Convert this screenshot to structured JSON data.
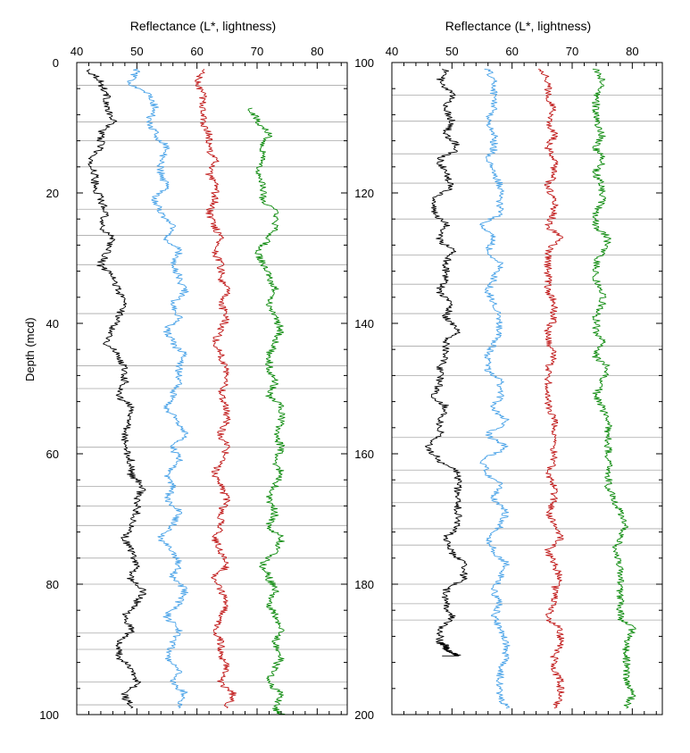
{
  "chart_data": [
    {
      "type": "line",
      "title": "Reflectance  (L*, lightness)",
      "ylabel": "Depth  (mcd)",
      "xlim": [
        40,
        85
      ],
      "ylim": [
        0,
        100
      ],
      "y_inverted": true,
      "x_ticks": [
        40,
        50,
        60,
        70,
        80
      ],
      "y_ticks": [
        0,
        20,
        40,
        60,
        80,
        100
      ],
      "colors": [
        "#000000",
        "#4aa3e8",
        "#c01818",
        "#0c8a0c"
      ],
      "boundaries": [
        3.5,
        9.1,
        12,
        16,
        22.5,
        26.5,
        31,
        38.5,
        46.5,
        50,
        59,
        65,
        68,
        71,
        76,
        80,
        87.5,
        90,
        95,
        98.5
      ],
      "series": [
        {
          "color": "#000000",
          "x": [
            42,
            44,
            45,
            45,
            46,
            44,
            44,
            42,
            43,
            43,
            44,
            45,
            44,
            46,
            45,
            44,
            46,
            47,
            48,
            47,
            46,
            45,
            47,
            48,
            48,
            47,
            49,
            49,
            48,
            48,
            49,
            49,
            51,
            50,
            50,
            49,
            48,
            49,
            50,
            49,
            51,
            50,
            48,
            49,
            47,
            47,
            49,
            50,
            48,
            49
          ],
          "y": [
            1,
            3,
            5,
            7,
            9,
            11,
            13,
            15,
            17,
            19,
            21,
            23,
            25,
            27,
            29,
            31,
            33,
            35,
            37,
            39,
            41,
            43,
            45,
            47,
            49,
            51,
            53,
            55,
            57,
            59,
            61,
            63,
            65,
            67,
            69,
            71,
            73,
            75,
            77,
            79,
            81,
            83,
            85,
            87,
            89,
            91,
            93,
            95,
            97,
            99
          ]
        },
        {
          "color": "#4aa3e8",
          "x": [
            50,
            49,
            52,
            53,
            52,
            53,
            55,
            54,
            54,
            55,
            53,
            54,
            56,
            55,
            57,
            56,
            57,
            58,
            56,
            57,
            55,
            56,
            58,
            57,
            57,
            56,
            55,
            57,
            58,
            56,
            57,
            55,
            56,
            55,
            57,
            56,
            54,
            56,
            57,
            56,
            58,
            57,
            55,
            57,
            56,
            55,
            57,
            56,
            58,
            57
          ],
          "y": [
            1,
            3,
            5,
            7,
            9,
            11,
            13,
            15,
            17,
            19,
            21,
            23,
            25,
            27,
            29,
            31,
            33,
            35,
            37,
            39,
            41,
            43,
            45,
            47,
            49,
            51,
            53,
            55,
            57,
            59,
            61,
            63,
            65,
            67,
            69,
            71,
            73,
            75,
            77,
            79,
            81,
            83,
            85,
            87,
            89,
            91,
            93,
            95,
            97,
            99
          ]
        },
        {
          "color": "#c01818",
          "x": [
            61,
            60,
            61,
            61,
            61,
            62,
            62,
            63,
            62,
            63,
            63,
            62,
            63,
            64,
            63,
            64,
            64,
            65,
            64,
            65,
            64,
            63,
            64,
            65,
            65,
            64,
            65,
            65,
            64,
            65,
            64,
            63,
            64,
            65,
            64,
            64,
            63,
            64,
            65,
            63,
            64,
            65,
            64,
            63,
            64,
            64,
            65,
            64,
            66,
            65
          ],
          "y": [
            1,
            3,
            5,
            7,
            9,
            11,
            13,
            15,
            17,
            19,
            21,
            23,
            25,
            27,
            29,
            31,
            33,
            35,
            37,
            39,
            41,
            43,
            45,
            47,
            49,
            51,
            53,
            55,
            57,
            59,
            61,
            63,
            65,
            67,
            69,
            71,
            73,
            75,
            77,
            79,
            81,
            83,
            85,
            87,
            89,
            91,
            93,
            95,
            97,
            99
          ]
        },
        {
          "color": "#0c8a0c",
          "x": [
            69,
            70,
            72,
            71,
            71,
            70,
            71,
            71,
            73,
            73,
            72,
            70,
            71,
            72,
            73,
            72,
            73,
            74,
            73,
            72,
            72,
            73,
            72,
            74,
            74,
            73,
            74,
            73,
            74,
            73,
            72,
            73,
            72,
            74,
            73,
            71,
            72,
            73,
            72,
            73,
            74,
            73,
            74,
            73,
            72,
            74,
            73,
            74,
            73,
            74
          ],
          "y": [
            7,
            9,
            11,
            13,
            15,
            17,
            19,
            21,
            23,
            25,
            27,
            29,
            31,
            33,
            35,
            37,
            39,
            41,
            43,
            45,
            47,
            49,
            51,
            53,
            55,
            57,
            59,
            61,
            63,
            65,
            67,
            69,
            71,
            73,
            75,
            77,
            79,
            81,
            83,
            85,
            87,
            89,
            91,
            93,
            95,
            97,
            99,
            100,
            100,
            100
          ]
        }
      ]
    },
    {
      "type": "line",
      "title": "Reflectance  (L*, lightness)",
      "xlim": [
        40,
        85
      ],
      "ylim": [
        100,
        200
      ],
      "y_inverted": true,
      "x_ticks": [
        40,
        50,
        60,
        70,
        80
      ],
      "y_ticks": [
        100,
        120,
        140,
        160,
        180,
        200
      ],
      "colors": [
        "#000000",
        "#4aa3e8",
        "#c01818",
        "#0c8a0c"
      ],
      "boundaries": [
        105,
        109,
        114,
        118.5,
        124,
        129.5,
        134,
        138.5,
        143.5,
        148,
        157.5,
        162.5,
        164.5,
        167.5,
        171.5,
        174,
        180,
        183,
        185.5
      ],
      "series": [
        {
          "color": "#000000",
          "x": [
            49,
            48,
            50,
            49,
            50,
            49,
            51,
            48,
            49,
            50,
            47,
            47,
            49,
            48,
            50,
            49,
            49,
            48,
            50,
            49,
            51,
            49,
            49,
            48,
            48,
            47,
            49,
            48,
            48,
            46,
            48,
            51,
            51,
            51,
            51,
            51,
            49,
            50,
            52,
            52,
            49,
            49,
            50,
            48,
            48,
            49,
            49,
            50,
            51,
            49
          ],
          "y": [
            101,
            103,
            105,
            107,
            109,
            111,
            113,
            115,
            117,
            119,
            121,
            123,
            125,
            127,
            129,
            131,
            133,
            135,
            137,
            139,
            141,
            143,
            145,
            147,
            149,
            151,
            153,
            155,
            157,
            159,
            161,
            163,
            165,
            167,
            169,
            171,
            173,
            175,
            177,
            179,
            181,
            183,
            185,
            187,
            189,
            189.5,
            190,
            190.5,
            191,
            191
          ]
        },
        {
          "color": "#4aa3e8",
          "x": [
            56,
            57,
            57,
            57,
            56,
            57,
            57,
            56,
            57,
            58,
            58,
            58,
            55,
            57,
            56,
            58,
            57,
            56,
            57,
            58,
            58,
            57,
            56,
            56,
            58,
            58,
            57,
            59,
            56,
            59,
            55,
            56,
            58,
            57,
            59,
            58,
            56,
            57,
            59,
            58,
            57,
            58,
            57,
            58,
            59,
            59,
            58,
            58,
            58,
            59
          ],
          "y": [
            101,
            103,
            105,
            107,
            109,
            111,
            113,
            115,
            117,
            119,
            121,
            123,
            125,
            127,
            129,
            131,
            133,
            135,
            137,
            139,
            141,
            143,
            145,
            147,
            149,
            151,
            153,
            155,
            157,
            159,
            161,
            163,
            165,
            167,
            169,
            171,
            173,
            175,
            177,
            179,
            181,
            183,
            185,
            187,
            189,
            191,
            193,
            195,
            197,
            199
          ]
        },
        {
          "color": "#c01818",
          "x": [
            65,
            66,
            66,
            67,
            66,
            67,
            66,
            67,
            67,
            66,
            67,
            67,
            66,
            68,
            66,
            66,
            66,
            66,
            67,
            67,
            66,
            66,
            67,
            66,
            66,
            66,
            66,
            67,
            67,
            67,
            67,
            66,
            67,
            67,
            66,
            67,
            68,
            66,
            67,
            68,
            67,
            67,
            66,
            68,
            68,
            67,
            67,
            68,
            68,
            67
          ],
          "y": [
            101,
            103,
            105,
            107,
            109,
            111,
            113,
            115,
            117,
            119,
            121,
            123,
            125,
            127,
            129,
            131,
            133,
            135,
            137,
            139,
            141,
            143,
            145,
            147,
            149,
            151,
            153,
            155,
            157,
            159,
            161,
            163,
            165,
            167,
            169,
            171,
            173,
            175,
            177,
            179,
            181,
            183,
            185,
            187,
            189,
            191,
            193,
            195,
            197,
            199
          ]
        },
        {
          "color": "#0c8a0c",
          "x": [
            74,
            75,
            74,
            74,
            74,
            75,
            74,
            75,
            74,
            75,
            75,
            74,
            74,
            76,
            75,
            74,
            74,
            75,
            75,
            74,
            74,
            75,
            74,
            76,
            75,
            74,
            75,
            76,
            76,
            76,
            76,
            76,
            76,
            77,
            78,
            79,
            78,
            77,
            78,
            78,
            78,
            78,
            78,
            80,
            79,
            79,
            79,
            79,
            80,
            79
          ],
          "y": [
            101,
            103,
            105,
            107,
            109,
            111,
            113,
            115,
            117,
            119,
            121,
            123,
            125,
            127,
            129,
            131,
            133,
            135,
            137,
            139,
            141,
            143,
            145,
            147,
            149,
            151,
            153,
            155,
            157,
            159,
            161,
            163,
            165,
            167,
            169,
            171,
            173,
            175,
            177,
            179,
            181,
            183,
            185,
            187,
            189,
            191,
            193,
            195,
            197,
            199
          ]
        }
      ]
    }
  ]
}
